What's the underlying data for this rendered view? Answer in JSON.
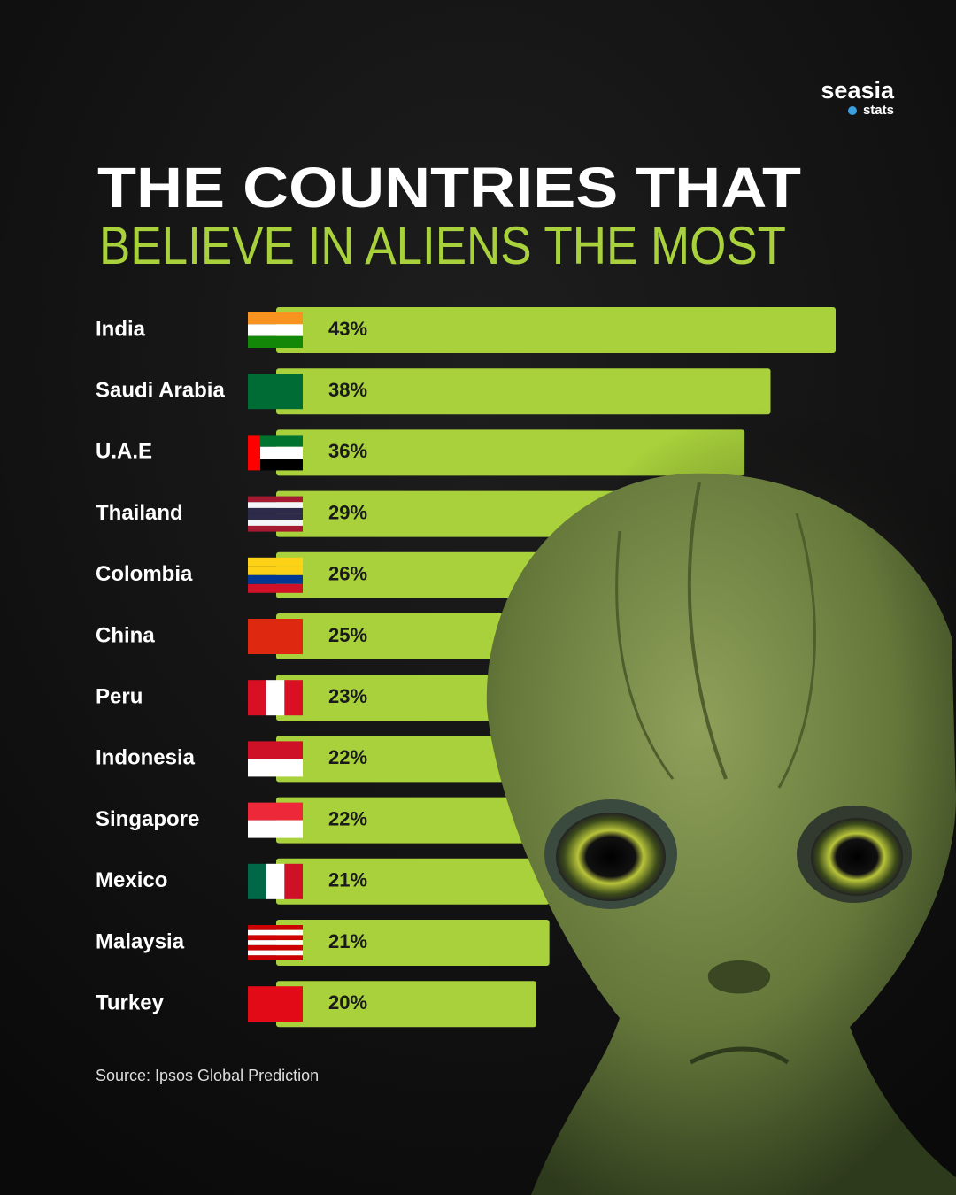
{
  "chart_data": {
    "type": "bar",
    "orientation": "horizontal",
    "brand": "seasia",
    "brand_sub": "stats",
    "title": "THE COUNTRIES THAT",
    "subtitle": "BELIEVE IN ALIENS THE MOST",
    "categories": [
      "India",
      "Saudi Arabia",
      "U.A.E",
      "Thailand",
      "Colombia",
      "China",
      "Peru",
      "Indonesia",
      "Singapore",
      "Mexico",
      "Malaysia",
      "Turkey"
    ],
    "values": [
      43,
      38,
      36,
      29,
      26,
      25,
      23,
      22,
      22,
      21,
      21,
      20
    ],
    "value_labels": [
      "43%",
      "38%",
      "36%",
      "29%",
      "26%",
      "25%",
      "23%",
      "22%",
      "22%",
      "21%",
      "21%",
      "20%"
    ],
    "color": "#a8d13b",
    "source": "Source: Ipsos Global Prediction"
  }
}
